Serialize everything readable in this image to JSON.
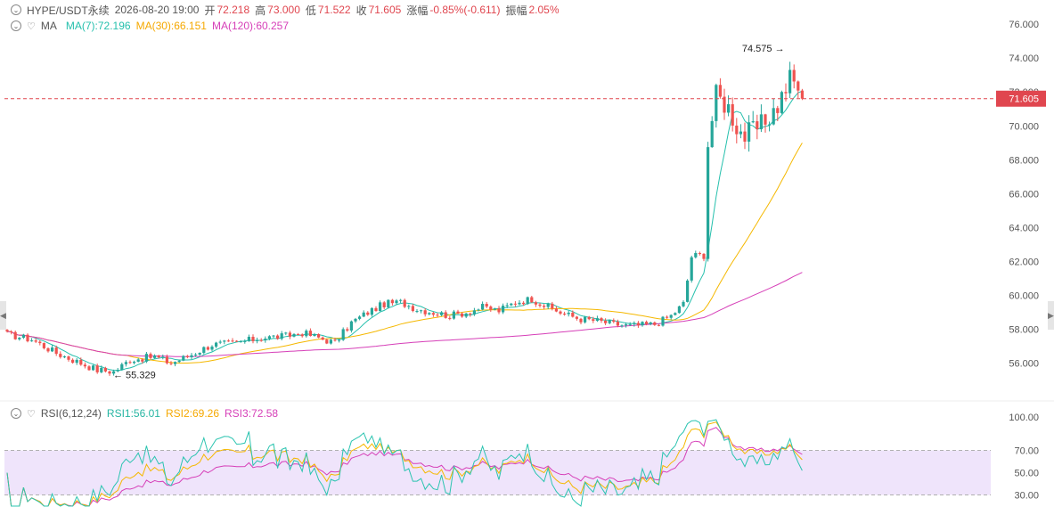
{
  "header": {
    "symbol": "HYPE/USDT永续",
    "datetime": "2026-08-20 19:00",
    "open_label": "开",
    "open_value": "72.218",
    "high_label": "高",
    "high_value": "73.000",
    "low_label": "低",
    "low_value": "71.522",
    "close_label": "收",
    "close_value": "71.605",
    "change_label": "涨幅",
    "change_value": "-0.85%(-0.611)",
    "amplitude_label": "振幅",
    "amplitude_value": "2.05%"
  },
  "ma_legend": {
    "name": "MA",
    "ma7": "MA(7):72.196",
    "ma30": "MA(30):66.151",
    "ma120": "MA(120):60.257"
  },
  "rsi_legend": {
    "name": "RSI(6,12,24)",
    "rsi1": "RSI1:56.01",
    "rsi2": "RSI2:69.26",
    "rsi3": "RSI3:72.58"
  },
  "colors": {
    "up": "#26a69a",
    "down": "#ef5350",
    "ma7": "#26c0ad",
    "ma30": "#f5b800",
    "ma120": "#d63fb8",
    "rsi1": "#2bc4b0",
    "rsi2": "#f5b800",
    "rsi3": "#d63fb8",
    "rsi_band": "#efe4fb",
    "last_price": "#e0464f"
  },
  "chart_data": [
    {
      "type": "candlestick",
      "title": "HYPE/USDT永续",
      "price_axis": {
        "ticks": [
          "76.000",
          "74.000",
          "72.000",
          "70.000",
          "68.000",
          "66.000",
          "64.000",
          "62.000",
          "60.000",
          "58.000",
          "56.000"
        ],
        "range": [
          54.3,
          76.9
        ]
      },
      "last_price": 71.605,
      "last_price_label": "71.605",
      "high_annotation": {
        "value": 74.575,
        "label": "74.575"
      },
      "low_annotation": {
        "value": 55.329,
        "label": "55.329"
      },
      "segments": [
        [
          0,
          57.7
        ],
        [
          6,
          57.4
        ],
        [
          12,
          56.6
        ],
        [
          18,
          56.0
        ],
        [
          22,
          55.6
        ],
        [
          26,
          55.5
        ],
        [
          30,
          56.2
        ],
        [
          36,
          56.4
        ],
        [
          40,
          56.0
        ],
        [
          44,
          56.4
        ],
        [
          50,
          57.1
        ],
        [
          56,
          57.2
        ],
        [
          62,
          57.5
        ],
        [
          68,
          57.6
        ],
        [
          72,
          57.8
        ],
        [
          76,
          57.5
        ],
        [
          80,
          57.2
        ],
        [
          84,
          58.4
        ],
        [
          88,
          59.0
        ],
        [
          92,
          59.5
        ],
        [
          96,
          59.6
        ],
        [
          100,
          59.2
        ],
        [
          104,
          59.0
        ],
        [
          108,
          58.8
        ],
        [
          112,
          59.0
        ],
        [
          116,
          59.3
        ],
        [
          120,
          59.1
        ],
        [
          124,
          59.6
        ],
        [
          128,
          59.8
        ],
        [
          132,
          59.3
        ],
        [
          136,
          58.9
        ],
        [
          140,
          58.6
        ],
        [
          144,
          58.5
        ],
        [
          148,
          58.3
        ],
        [
          152,
          58.2
        ],
        [
          158,
          58.3
        ],
        [
          162,
          58.8
        ],
        [
          165,
          59.5
        ],
        [
          167,
          62.3
        ],
        [
          170,
          62.4
        ],
        [
          171,
          69.0
        ],
        [
          173,
          71.8
        ],
        [
          176,
          71.1
        ],
        [
          178,
          70.0
        ],
        [
          180,
          69.4
        ],
        [
          184,
          70.0
        ],
        [
          188,
          71.2
        ],
        [
          191,
          72.8
        ],
        [
          193,
          72.3
        ],
        [
          194,
          71.6
        ]
      ],
      "ma7": {
        "label": "MA(7)",
        "last": 72.196
      },
      "ma30": {
        "label": "MA(30)",
        "last": 66.151
      },
      "ma120": {
        "label": "MA(120)",
        "last": 60.257
      }
    },
    {
      "type": "line",
      "title": "RSI(6,12,24)",
      "rsi_axis": {
        "ticks": [
          "100.00",
          "70.00",
          "50.00",
          "30.00"
        ]
      },
      "overbought": 70,
      "oversold": 30,
      "series": [
        {
          "name": "RSI1",
          "last": 56.01
        },
        {
          "name": "RSI2",
          "last": 69.26
        },
        {
          "name": "RSI3",
          "last": 72.58
        }
      ]
    }
  ]
}
